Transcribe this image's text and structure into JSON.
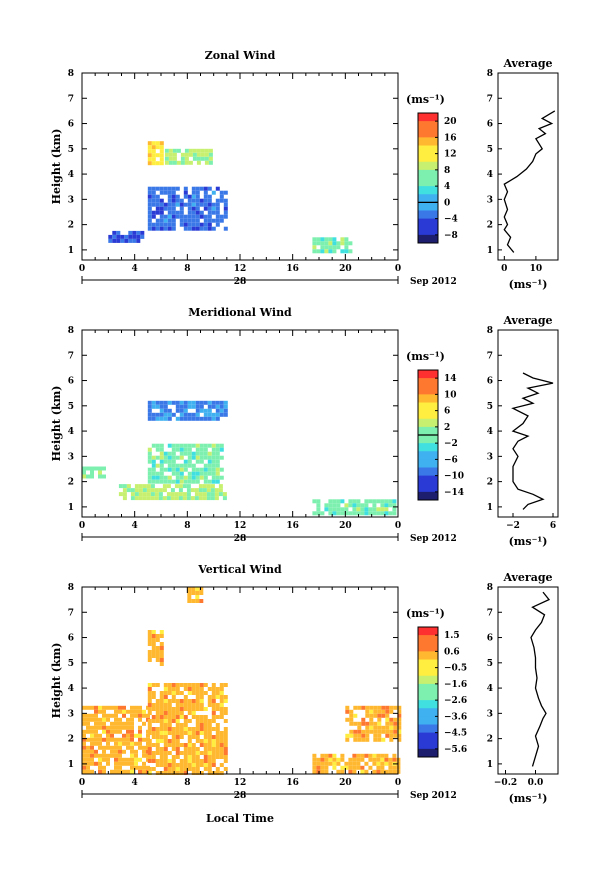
{
  "xlabel": "Local Time",
  "date_label": "Sep 2012",
  "day_label": "28",
  "chart_data": [
    {
      "type": "heatmap",
      "title": "Zonal Wind",
      "ylabel": "Height (km)",
      "xticks": [
        "0",
        "4",
        "8",
        "12",
        "16",
        "20",
        "0"
      ],
      "xlim": [
        0,
        24
      ],
      "yticks": [
        "1",
        "2",
        "3",
        "4",
        "5",
        "6",
        "7",
        "8"
      ],
      "ylim": [
        0.6,
        8
      ],
      "colorbar": {
        "unit": "(ms⁻¹)",
        "ticks": [
          "20",
          "16",
          "12",
          "8",
          "4",
          "0",
          "−4",
          "−8"
        ],
        "min": -10,
        "max": 22,
        "contour_at": 0
      },
      "blobs": [
        {
          "t0": 2.0,
          "t1": 4.5,
          "h0": 1.3,
          "h1": 1.75,
          "value": -5
        },
        {
          "t0": 5.0,
          "t1": 10.8,
          "h0": 1.8,
          "h1": 3.5,
          "value": -3
        },
        {
          "t0": 5.0,
          "t1": 6.0,
          "h0": 4.5,
          "h1": 5.3,
          "value": 12
        },
        {
          "t0": 6.3,
          "t1": 9.8,
          "h0": 4.4,
          "h1": 5.0,
          "value": 8
        },
        {
          "t0": 17.5,
          "t1": 20.5,
          "h0": 0.9,
          "h1": 1.5,
          "value": 6
        }
      ],
      "avg_profile": {
        "title": "Average",
        "xlabel": "(ms⁻¹)",
        "xticks": [
          "0",
          "10"
        ],
        "xlim": [
          -2,
          17
        ],
        "heights": [
          0.9,
          1.2,
          1.5,
          1.8,
          2.0,
          2.3,
          2.6,
          3.0,
          3.3,
          3.6,
          3.9,
          4.2,
          4.5,
          4.8,
          5.0,
          5.2,
          5.4,
          5.6,
          5.8,
          6.0,
          6.2,
          6.5
        ],
        "values": [
          3,
          1,
          2,
          0,
          1,
          0,
          1,
          0,
          1,
          0,
          4,
          7,
          9,
          10,
          12,
          11,
          10,
          13,
          11,
          15,
          12,
          16
        ]
      }
    },
    {
      "type": "heatmap",
      "title": "Meridional Wind",
      "ylabel": "Height (km)",
      "xticks": [
        "0",
        "4",
        "8",
        "12",
        "16",
        "20",
        "0"
      ],
      "xlim": [
        0,
        24
      ],
      "yticks": [
        "1",
        "2",
        "3",
        "4",
        "5",
        "6",
        "7",
        "8"
      ],
      "ylim": [
        0.6,
        8
      ],
      "colorbar": {
        "unit": "(ms⁻¹)",
        "ticks": [
          "14",
          "10",
          "6",
          "2",
          "−2",
          "−6",
          "−10",
          "−14"
        ],
        "min": -16,
        "max": 16,
        "contour_at": 0
      },
      "blobs": [
        {
          "t0": 0.0,
          "t1": 1.8,
          "h0": 2.2,
          "h1": 2.6,
          "value": 0
        },
        {
          "t0": 2.8,
          "t1": 11.0,
          "h0": 1.3,
          "h1": 1.9,
          "value": 2
        },
        {
          "t0": 5.0,
          "t1": 10.6,
          "h0": 2.0,
          "h1": 3.5,
          "value": 0
        },
        {
          "t0": 5.0,
          "t1": 11.0,
          "h0": 4.5,
          "h1": 5.2,
          "value": -8
        },
        {
          "t0": 17.5,
          "t1": 23.8,
          "h0": 0.8,
          "h1": 1.3,
          "value": 0
        }
      ],
      "avg_profile": {
        "title": "Average",
        "xlabel": "(ms⁻¹)",
        "xticks": [
          "−2",
          "6"
        ],
        "xlim": [
          -5,
          7
        ],
        "heights": [
          0.9,
          1.1,
          1.3,
          1.5,
          1.7,
          2.0,
          2.3,
          2.6,
          3.0,
          3.3,
          3.6,
          3.8,
          4.0,
          4.3,
          4.6,
          4.9,
          5.1,
          5.3,
          5.5,
          5.7,
          5.9,
          6.1,
          6.3
        ],
        "values": [
          0,
          1,
          4,
          2,
          -1,
          -2,
          -2,
          -2,
          -1,
          -2,
          -1,
          1,
          -2,
          0,
          1,
          -2,
          2,
          0,
          3,
          1,
          6,
          2,
          0
        ]
      }
    },
    {
      "type": "heatmap",
      "title": "Vertical Wind",
      "ylabel": "Height (km)",
      "xticks": [
        "0",
        "4",
        "8",
        "12",
        "16",
        "20",
        "0"
      ],
      "xlim": [
        0,
        24
      ],
      "yticks": [
        "1",
        "2",
        "3",
        "4",
        "5",
        "6",
        "7",
        "8"
      ],
      "ylim": [
        0.6,
        8
      ],
      "colorbar": {
        "unit": "(ms⁻¹)",
        "ticks": [
          "1.5",
          "0.6",
          "−0.5",
          "−1.6",
          "−2.6",
          "−3.6",
          "−4.5",
          "−5.6"
        ],
        "min": -6,
        "max": 2
      },
      "blobs": [
        {
          "t0": 0.0,
          "t1": 5.0,
          "h0": 0.7,
          "h1": 3.3,
          "value": 0.2
        },
        {
          "t0": 5.0,
          "t1": 11.0,
          "h0": 0.7,
          "h1": 4.2,
          "value": 0.2
        },
        {
          "t0": 5.0,
          "t1": 6.0,
          "h0": 5.0,
          "h1": 6.3,
          "value": 0.2
        },
        {
          "t0": 8.0,
          "t1": 9.0,
          "h0": 7.5,
          "h1": 8.0,
          "value": 0.2
        },
        {
          "t0": 17.5,
          "t1": 24.0,
          "h0": 0.7,
          "h1": 1.4,
          "value": 0.2
        },
        {
          "t0": 20.0,
          "t1": 24.0,
          "h0": 2.0,
          "h1": 3.3,
          "value": 0.2
        }
      ],
      "avg_profile": {
        "title": "Average",
        "xlabel": "(ms⁻¹)",
        "xticks": [
          "−0.2",
          "0.0"
        ],
        "xlim": [
          -0.25,
          0.15
        ],
        "heights": [
          0.9,
          1.3,
          1.7,
          2.1,
          2.5,
          2.8,
          3.0,
          3.3,
          3.6,
          4.0,
          4.4,
          4.8,
          5.2,
          5.6,
          6.0,
          6.3,
          6.6,
          6.9,
          7.2,
          7.5,
          7.8
        ],
        "values": [
          -0.02,
          0.0,
          0.02,
          0.0,
          0.03,
          0.05,
          0.07,
          0.04,
          0.02,
          0.0,
          0.01,
          0.0,
          0.0,
          -0.01,
          -0.03,
          0.0,
          0.04,
          0.06,
          -0.02,
          0.09,
          0.05
        ]
      }
    }
  ]
}
